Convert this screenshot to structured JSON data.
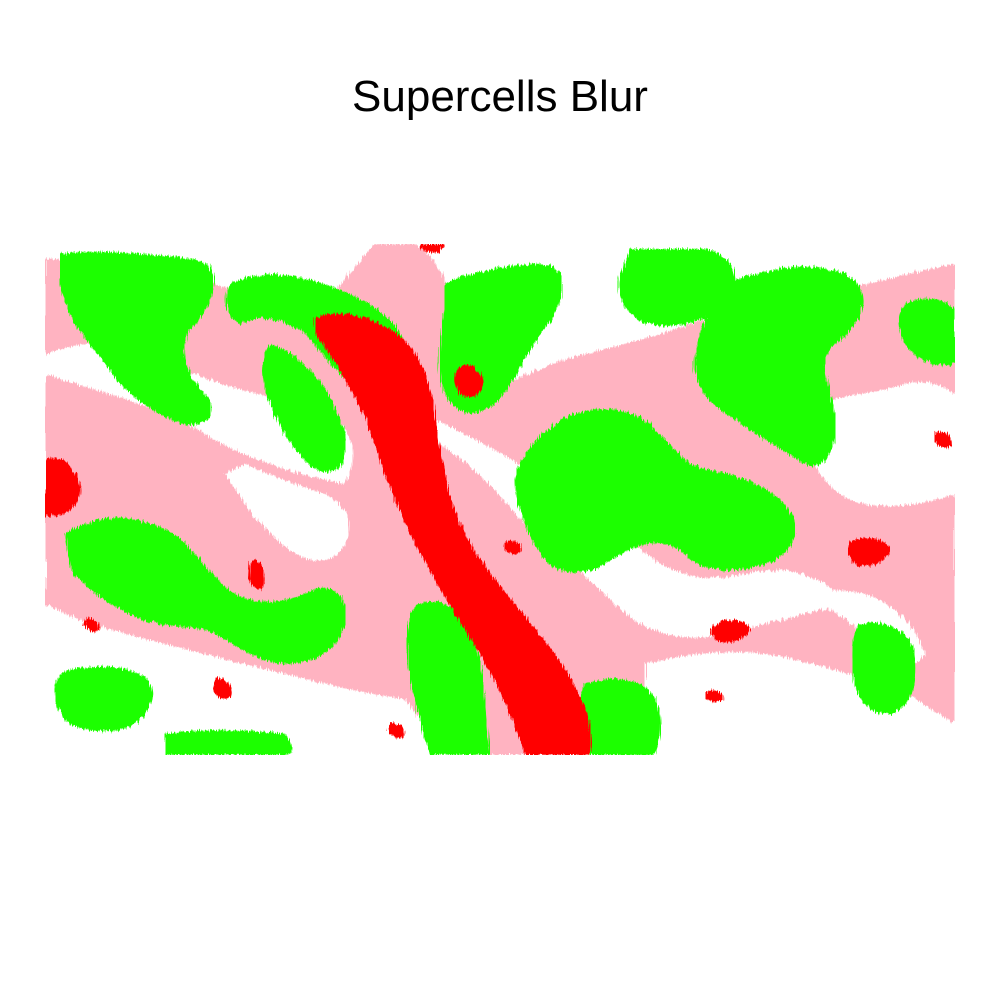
{
  "title": "Supercells Blur",
  "colors": {
    "background": "#ffffff",
    "light": "#ffb3c1",
    "green": "#1eff00",
    "red": "#ff0000"
  },
  "layers": [
    "background",
    "light",
    "green",
    "red"
  ]
}
